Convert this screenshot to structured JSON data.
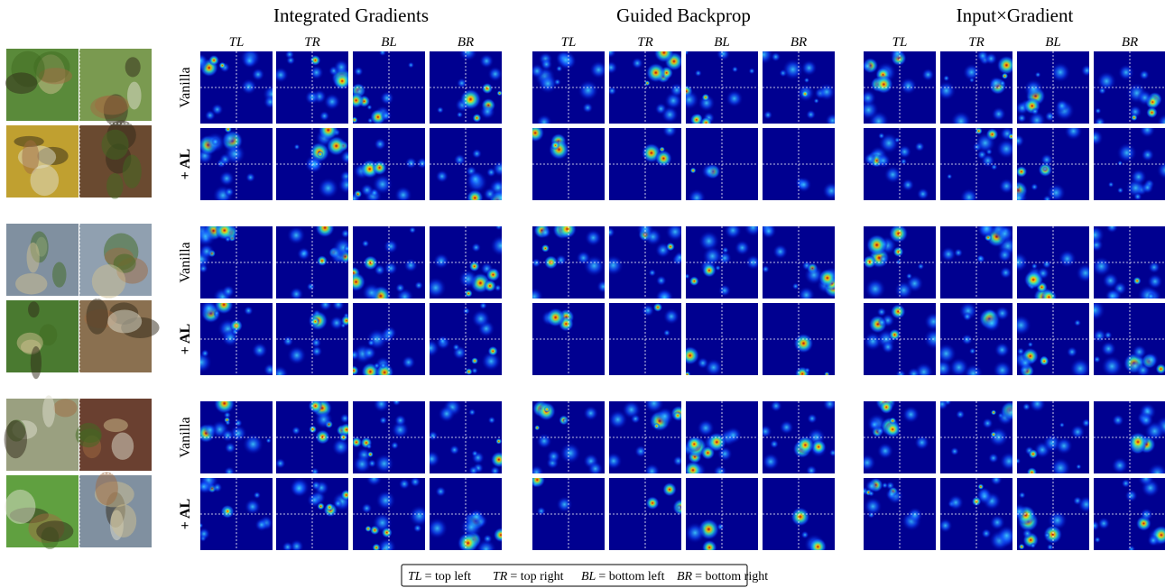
{
  "methods": [
    "Integrated Gradients",
    "Guided Backprop",
    "Input×Gradient"
  ],
  "columns": [
    "TL",
    "TR",
    "BL",
    "BR"
  ],
  "rows": [
    "Vanilla",
    "+ AL"
  ],
  "legend": [
    {
      "key": "TL",
      "text": "= top left"
    },
    {
      "key": "TR",
      "text": "= top right"
    },
    {
      "key": "BL",
      "text": "= bottom left"
    },
    {
      "key": "BR",
      "text": "= bottom right"
    }
  ]
}
